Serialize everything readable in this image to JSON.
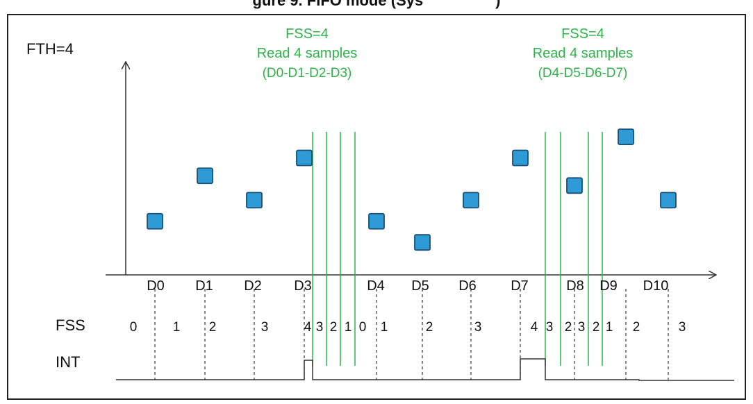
{
  "page": {
    "title": "gure 9. FIFO mode (Sys                 )"
  },
  "diagram": {
    "fth_label": "FTH=4",
    "read_annotations": [
      {
        "line1": "FSS=4",
        "line2": "Read 4 samples",
        "line3": "(D0-D1-D2-D3)"
      },
      {
        "line1": "FSS=4",
        "line2": "Read 4 samples",
        "line3": "(D4-D5-D6-D7)"
      }
    ],
    "samples": [
      {
        "label": "D0",
        "value": 0.33
      },
      {
        "label": "D1",
        "value": 0.61
      },
      {
        "label": "D2",
        "value": 0.46
      },
      {
        "label": "D3",
        "value": 0.72
      },
      {
        "label": "D4",
        "value": 0.33
      },
      {
        "label": "D5",
        "value": 0.2
      },
      {
        "label": "D6",
        "value": 0.46
      },
      {
        "label": "D7",
        "value": 0.72
      },
      {
        "label": "D8",
        "value": 0.55
      },
      {
        "label": "D9",
        "value": 0.85
      },
      {
        "label": "D10",
        "value": 0.46
      }
    ],
    "fss_row_label": "FSS",
    "int_row_label": "INT",
    "fss_values": [
      "0",
      "1",
      "2",
      "3",
      "4",
      "3",
      "2",
      "1",
      "0",
      "1",
      "2",
      "3",
      "4",
      "3",
      "2",
      "3",
      "2",
      "1",
      "2",
      "3"
    ],
    "colors": {
      "marker_fill": "#2e9bd6",
      "marker_stroke": "#1a4f73",
      "annotation": "#2db34a",
      "read_line": "#2db34a",
      "axis": "#333333",
      "text": "#111111"
    }
  }
}
